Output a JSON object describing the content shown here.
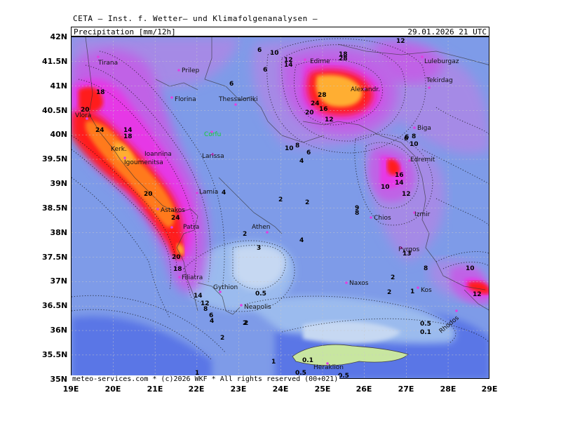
{
  "header": {
    "agency": "CETA — Inst. f. Wetter— und Klimafolgenanalysen —"
  },
  "titlebar": {
    "variable": "Precipitation [mm/12h]",
    "valid_time": "29.01.2026 21 UTC"
  },
  "footer": {
    "credit": "meteo-services.com * (c)2026 WKF * All rights reserved (00+021)"
  },
  "axes": {
    "lat_labels": [
      "42N",
      "41.5N",
      "41N",
      "40.5N",
      "40N",
      "39.5N",
      "39N",
      "38.5N",
      "38N",
      "37.5N",
      "37N",
      "36.5N",
      "36N",
      "35.5N",
      "35N"
    ],
    "lon_labels": [
      "19E",
      "20E",
      "21E",
      "22E",
      "23E",
      "24E",
      "25E",
      "26E",
      "27E",
      "28E",
      "29E"
    ]
  },
  "cities": [
    "Tirana",
    "Prilep",
    "Florina",
    "Thessaloniki",
    "Edirne",
    "Luleburgaz",
    "Alexandr.",
    "Tekirdag",
    "Vlora",
    "Corfu",
    "Biga",
    "Kerk.",
    "Igoumenitsa",
    "Ioannina",
    "Larissa",
    "Edremit",
    "Lamia",
    "Astakos",
    "Izmir",
    "Chios",
    "Patra",
    "Athen",
    "Pyrgos",
    "Kos",
    "Naxos",
    "Filiatra",
    "Gythion",
    "Neapolis",
    "Rhodos",
    "Heraklion"
  ],
  "contour_labels": [
    "12",
    "6",
    "10",
    "12",
    "14",
    "28",
    "18",
    "28",
    "24",
    "20",
    "12",
    "16",
    "6",
    "6",
    "8",
    "10",
    "6",
    "4",
    "6",
    "10",
    "8",
    "16",
    "14",
    "10",
    "12",
    "6",
    "4",
    "2",
    "2",
    "2",
    "4",
    "3",
    "2",
    "0.5",
    "2",
    "9",
    "8",
    "13",
    "8",
    "10",
    "12",
    "2",
    "1",
    "0.5",
    "0.1",
    "0.5",
    "0.1",
    "1",
    "0.5",
    "2",
    "2",
    "1",
    "18",
    "20",
    "14",
    "18",
    "24",
    "20",
    "24",
    "20",
    "18",
    "14",
    "12",
    "6",
    "4",
    "8"
  ],
  "colors": {
    "light_blue": "#c6d8f2",
    "blue": "#9bbbee",
    "mid_blue": "#7e9be8",
    "dark_blue": "#5a76e6",
    "lilac": "#a58ae6",
    "purple": "#c062e6",
    "magenta": "#e638e6",
    "red": "#ff1a1a",
    "orange": "#ff7a1a",
    "yellow_orange": "#ffae33",
    "land_crete": "#c8e6a0",
    "marker": "#e040e0"
  }
}
